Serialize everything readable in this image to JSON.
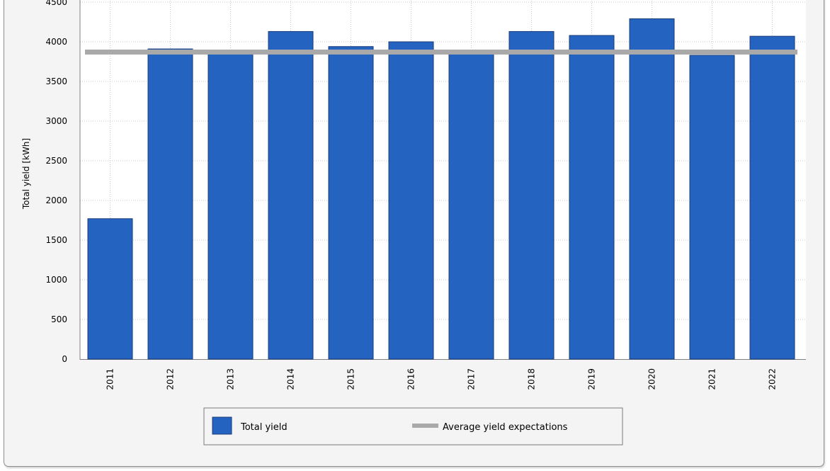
{
  "chart_data": {
    "type": "bar",
    "ylabel": "Total yield [kWh]",
    "xlabel": "",
    "title": "",
    "ylim": [
      0,
      4500
    ],
    "yticks": [
      0,
      500,
      1000,
      1500,
      2000,
      2500,
      3000,
      3500,
      4000,
      4500
    ],
    "categories": [
      "2011",
      "2012",
      "2013",
      "2014",
      "2015",
      "2016",
      "2017",
      "2018",
      "2019",
      "2020",
      "2021",
      "2022"
    ],
    "series": [
      {
        "name": "Total yield",
        "kind": "bar",
        "color": "#2563C0",
        "values": [
          1770,
          3910,
          3850,
          4130,
          3940,
          4000,
          3880,
          4130,
          4080,
          4290,
          3830,
          4070
        ]
      },
      {
        "name": "Average yield expectations",
        "kind": "line",
        "color": "#A9A9A9",
        "values": [
          3870,
          3870,
          3870,
          3870,
          3870,
          3870,
          3870,
          3870,
          3870,
          3870,
          3870,
          3870
        ]
      }
    ],
    "grid": true,
    "legend_position": "bottom-center"
  }
}
